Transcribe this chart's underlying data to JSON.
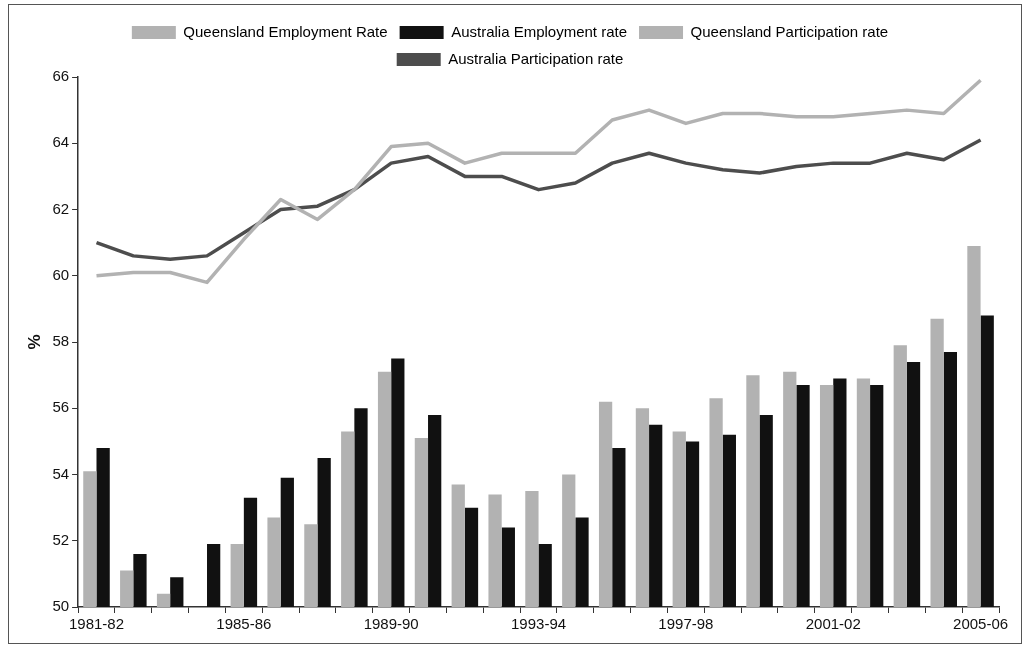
{
  "chart_data": {
    "type": "bar",
    "ylabel": "%",
    "categories": [
      "1981-82",
      null,
      null,
      null,
      "1985-86",
      null,
      null,
      null,
      "1989-90",
      null,
      null,
      null,
      "1993-94",
      null,
      null,
      null,
      "1997-98",
      null,
      null,
      null,
      "2001-02",
      null,
      null,
      null,
      "2005-06"
    ],
    "series": [
      {
        "name": "Queensland Employment Rate",
        "color": "#b2b2b2",
        "values": [
          54.1,
          51.1,
          50.4,
          null,
          51.9,
          52.7,
          52.5,
          55.3,
          57.1,
          55.1,
          53.7,
          53.4,
          53.5,
          54.0,
          56.2,
          56.0,
          55.3,
          56.3,
          57.0,
          57.1,
          56.7,
          56.9,
          57.9,
          58.7,
          60.9
        ]
      },
      {
        "name": "Australia Employment rate",
        "color": "#111111",
        "values": [
          54.8,
          51.6,
          50.9,
          51.9,
          53.3,
          53.9,
          54.5,
          56.0,
          57.5,
          55.8,
          53.0,
          52.4,
          51.9,
          52.7,
          54.8,
          55.5,
          55.0,
          55.2,
          55.8,
          56.7,
          56.9,
          56.7,
          57.4,
          57.7,
          58.8
        ]
      },
      {
        "name": "Queensland Participation rate",
        "type": "line",
        "color": "#b2b2b2",
        "values": [
          60.0,
          60.1,
          60.1,
          59.8,
          61.1,
          62.3,
          61.7,
          62.6,
          63.9,
          64.0,
          63.4,
          63.7,
          63.7,
          63.7,
          64.7,
          65.0,
          64.6,
          64.9,
          64.9,
          64.8,
          64.8,
          64.9,
          65.0,
          64.9,
          65.9
        ]
      },
      {
        "name": "Australia Participation rate",
        "type": "line",
        "color": "#4d4d4d",
        "values": [
          61.0,
          60.6,
          60.5,
          60.6,
          61.3,
          62.0,
          62.1,
          62.6,
          63.4,
          63.6,
          63.0,
          63.0,
          62.6,
          62.8,
          63.4,
          63.7,
          63.4,
          63.2,
          63.1,
          63.3,
          63.4,
          63.4,
          63.7,
          63.5,
          64.1
        ]
      }
    ],
    "ylim": [
      50,
      66
    ],
    "yticks": [
      50,
      52,
      54,
      56,
      58,
      60,
      62,
      64,
      66
    ],
    "grid": false,
    "legend": "top",
    "marker": "none",
    "line_style": "solid"
  }
}
